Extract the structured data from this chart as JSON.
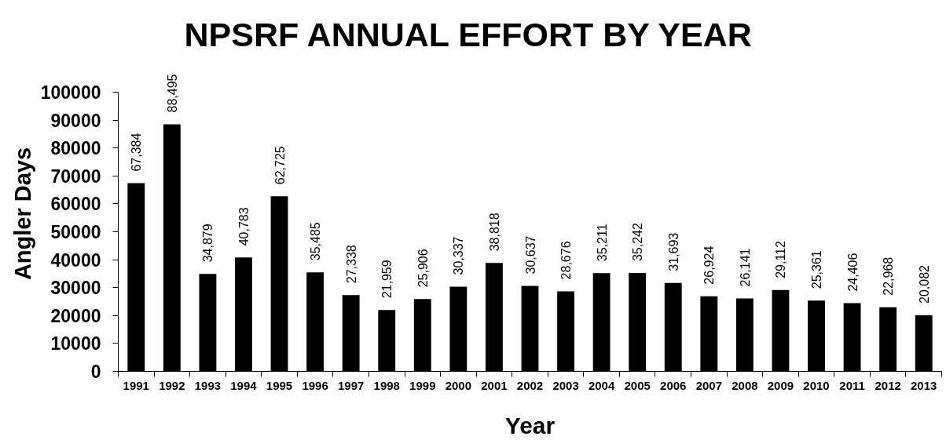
{
  "chart_data": {
    "type": "bar",
    "title": "NPSRF ANNUAL EFFORT BY YEAR",
    "xlabel": "Year",
    "ylabel": "Angler Days",
    "categories": [
      "1991",
      "1992",
      "1993",
      "1994",
      "1995",
      "1996",
      "1997",
      "1998",
      "1999",
      "2000",
      "2001",
      "2002",
      "2003",
      "2004",
      "2005",
      "2006",
      "2007",
      "2008",
      "2009",
      "2010",
      "2011",
      "2012",
      "2013"
    ],
    "values": [
      67384,
      88495,
      34879,
      40783,
      62725,
      35485,
      27338,
      21959,
      25906,
      30337,
      38818,
      30637,
      28676,
      35211,
      35242,
      31693,
      26924,
      26141,
      29112,
      25361,
      24406,
      22968,
      20082
    ],
    "value_labels": [
      "67,384",
      "88,495",
      "34,879",
      "40,783",
      "62,725",
      "35,485",
      "27,338",
      "21,959",
      "25,906",
      "30,337",
      "38,818",
      "30,637",
      "28,676",
      "35,211",
      "35,242",
      "31,693",
      "26,924",
      "26,141",
      "29,112",
      "25,361",
      "24,406",
      "22,968",
      "20,082"
    ],
    "color": "#000000",
    "ylim": [
      0,
      100000
    ],
    "yticks": [
      0,
      10000,
      20000,
      30000,
      40000,
      50000,
      60000,
      70000,
      80000,
      90000,
      100000
    ]
  }
}
